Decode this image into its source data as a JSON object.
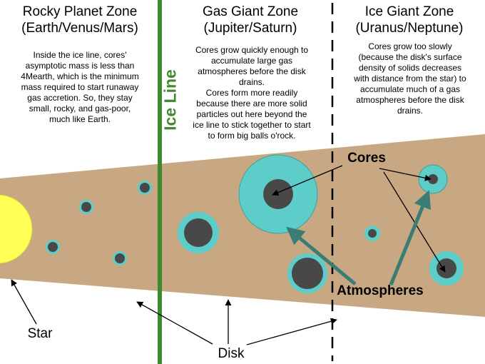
{
  "zones": [
    {
      "title_line1": "Rocky Planet Zone",
      "title_line2": "(Earth/Venus/Mars)",
      "description": [
        "Inside the ice line, cores'",
        "asymptotic mass is less than",
        "4Mearth, which is the minimum",
        "mass required to start runaway",
        "gas accretion.  So, they stay",
        "small, rocky, and gas-poor,",
        "much like Earth."
      ]
    },
    {
      "title_line1": "Gas Giant Zone",
      "title_line2": "(Jupiter/Saturn)",
      "description": [
        "Cores grow quickly enough to",
        "accumulate large gas",
        "atmospheres before the disk",
        "drains.",
        "Cores form more readily",
        "because there are more solid",
        "particles out here beyond the",
        "ice line to stick together to start",
        "to form big balls o'rock."
      ]
    },
    {
      "title_line1": "Ice Giant Zone",
      "title_line2": "(Uranus/Neptune)",
      "description": [
        "Cores grow too slowly",
        "(because the disk's surface",
        "density of solids decreases",
        "with distance from the star) to",
        "accumulate much of a gas",
        "atmospheres before the disk",
        "drains."
      ]
    }
  ],
  "labels": {
    "ice_line": "Ice Line",
    "cores": "Cores",
    "atmospheres": "Atmospheres",
    "star": "Star",
    "disk": "Disk"
  },
  "colors": {
    "disk": "#c8a882",
    "star": "#ffff55",
    "atmosphere": "#5dcdc9",
    "core": "#484848",
    "ice_line": "#3f8a2e",
    "pointer": "#3a7d74"
  }
}
